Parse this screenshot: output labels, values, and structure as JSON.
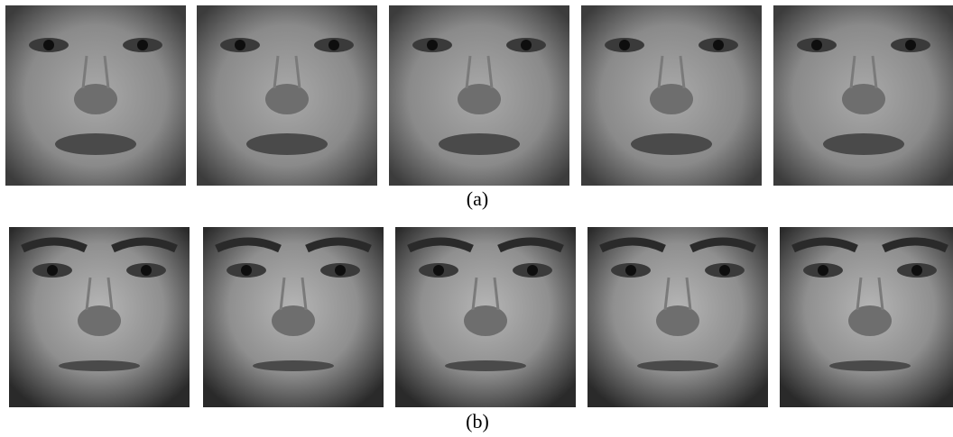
{
  "figure": {
    "rows": [
      {
        "caption": "(a)"
      },
      {
        "caption": "(b)"
      }
    ]
  }
}
